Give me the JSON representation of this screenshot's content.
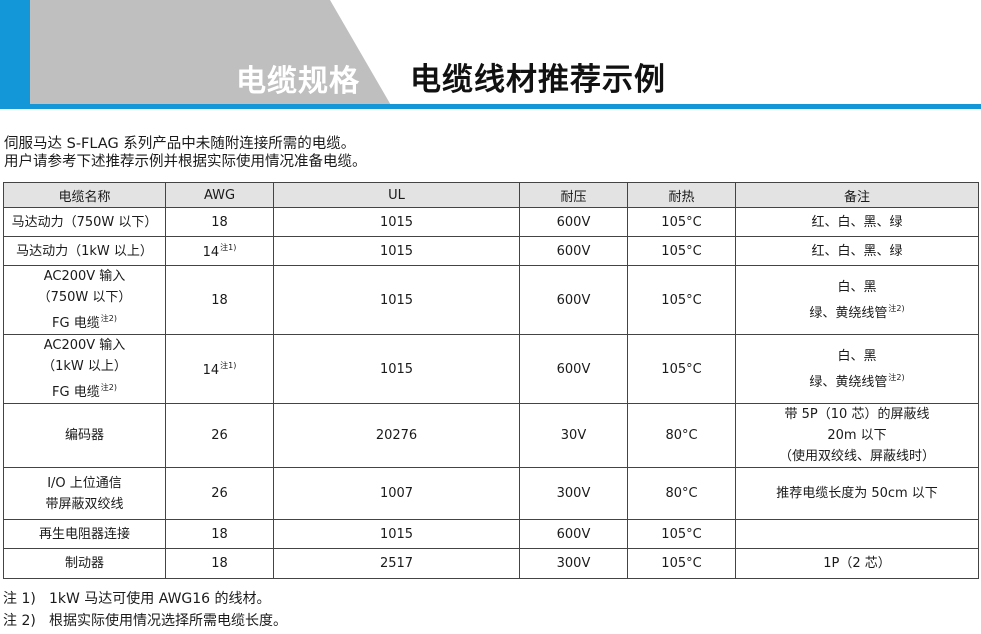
{
  "header": {
    "section_title": "电缆规格",
    "page_title": "电缆线材推荐示例"
  },
  "intro": [
    "伺服马达 S-FLAG 系列产品中未随附连接所需的电缆。",
    "用户请参考下述推荐示例并根据实际使用情况准备电缆。"
  ],
  "table": {
    "headers": [
      "电缆名称",
      "AWG",
      "UL",
      "耐压",
      "耐热",
      "备注"
    ],
    "rows": [
      {
        "name": [
          "马达动力（750W 以下）"
        ],
        "name_note": "",
        "awg": "18",
        "awg_note": "",
        "ul": "1015",
        "voltage": "600V",
        "heat": "105°C",
        "remark": [
          "红、白、黑、绿"
        ],
        "remark_note": ""
      },
      {
        "name": [
          "马达动力（1kW 以上）"
        ],
        "name_note": "",
        "awg": "14",
        "awg_note": "注1)",
        "ul": "1015",
        "voltage": "600V",
        "heat": "105°C",
        "remark": [
          "红、白、黑、绿"
        ],
        "remark_note": ""
      },
      {
        "name": [
          "AC200V 输入",
          "（750W 以下）",
          "FG 电缆"
        ],
        "name_note": "注2)",
        "awg": "18",
        "awg_note": "",
        "ul": "1015",
        "voltage": "600V",
        "heat": "105°C",
        "remark": [
          "白、黑",
          "绿、黄绕线管"
        ],
        "remark_note": "注2)"
      },
      {
        "name": [
          "AC200V 输入",
          "（1kW 以上）",
          "FG 电缆"
        ],
        "name_note": "注2)",
        "awg": "14",
        "awg_note": "注1)",
        "ul": "1015",
        "voltage": "600V",
        "heat": "105°C",
        "remark": [
          "白、黑",
          "绿、黄绕线管"
        ],
        "remark_note": "注2)"
      },
      {
        "name": [
          "编码器"
        ],
        "name_note": "",
        "awg": "26",
        "awg_note": "",
        "ul": "20276",
        "voltage": "30V",
        "heat": "80°C",
        "remark": [
          "带 5P（10 芯）的屏蔽线",
          "20m 以下",
          "（使用双绞线、屏蔽线时）"
        ],
        "remark_note": ""
      },
      {
        "name": [
          "I/O 上位通信",
          "带屏蔽双绞线"
        ],
        "name_note": "",
        "awg": "26",
        "awg_note": "",
        "ul": "1007",
        "voltage": "300V",
        "heat": "80°C",
        "remark": [
          "推荐电缆长度为 50cm 以下"
        ],
        "remark_note": ""
      },
      {
        "name": [
          "再生电阻器连接"
        ],
        "name_note": "",
        "awg": "18",
        "awg_note": "",
        "ul": "1015",
        "voltage": "600V",
        "heat": "105°C",
        "remark": [
          ""
        ],
        "remark_note": ""
      },
      {
        "name": [
          "制动器"
        ],
        "name_note": "",
        "awg": "18",
        "awg_note": "",
        "ul": "2517",
        "voltage": "300V",
        "heat": "105°C",
        "remark": [
          "1P（2 芯）"
        ],
        "remark_note": ""
      }
    ]
  },
  "notes": [
    {
      "id": "注 1)",
      "text": "1kW 马达可使用 AWG16 的线材。"
    },
    {
      "id": "注 2)",
      "text": "根据实际使用情况选择所需电缆长度。"
    }
  ],
  "colors": {
    "accent": "#1497d8",
    "header_gray": "#bfbfbf",
    "table_header_bg": "#e3e3e3"
  }
}
